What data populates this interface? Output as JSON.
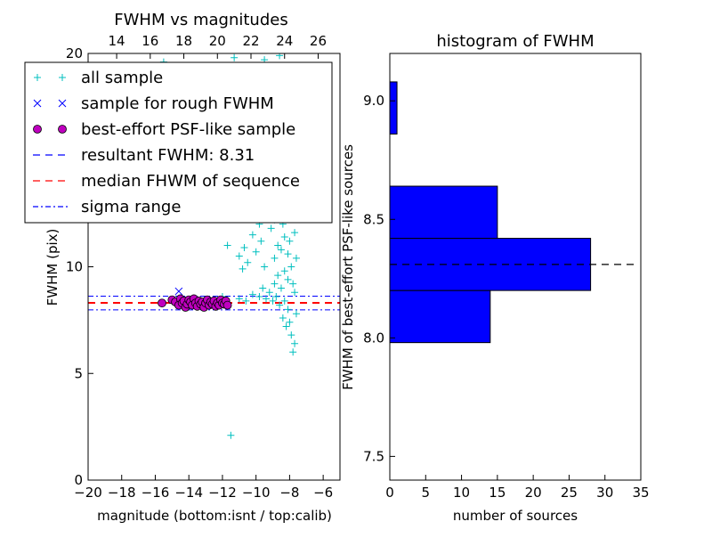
{
  "chart_data": [
    {
      "type": "scatter",
      "title": "FWHM vs magnitudes",
      "xlabel": "magnitude (bottom:isnt / top:calib)",
      "ylabel": "FWHM (pix)",
      "xlim": [
        -20,
        -5
      ],
      "ylim": [
        0,
        20
      ],
      "top_xlim": [
        12.3,
        27.3
      ],
      "x_ticks": [
        -20,
        -18,
        -16,
        -14,
        -12,
        -10,
        -8,
        -6
      ],
      "x_tick_labels": [
        "−20",
        "−18",
        "−16",
        "−14",
        "−12",
        "−10",
        "−8",
        "−6"
      ],
      "y_ticks": [
        0,
        5,
        10,
        20
      ],
      "y_tick_labels": [
        "0",
        "5",
        "10",
        "20"
      ],
      "top_ticks": [
        14,
        16,
        18,
        20,
        22,
        24,
        26
      ],
      "top_tick_labels": [
        "14",
        "16",
        "18",
        "20",
        "22",
        "24",
        "26"
      ],
      "legend_position": "top-left",
      "legend": [
        {
          "label": "all sample",
          "marker": "plus",
          "color": "#00bfbf"
        },
        {
          "label": "sample for rough FWHM",
          "marker": "x",
          "color": "#0000ff"
        },
        {
          "label": "best-effort PSF-like sample",
          "marker": "circle",
          "color": "#bf00bf"
        },
        {
          "label": "resultant FWHM: 8.31",
          "marker": "dashed",
          "color": "#0000ff"
        },
        {
          "label": "median FHWM of sequence",
          "marker": "dashed",
          "color": "#ff0000"
        },
        {
          "label": "sigma range",
          "marker": "dashdot",
          "color": "#0000ff"
        }
      ],
      "hlines": [
        {
          "name": "resultant FWHM",
          "y": 8.31,
          "color": "#0000ff",
          "style": "dashed"
        },
        {
          "name": "median FHWM of sequence",
          "y": 8.31,
          "color": "#ff0000",
          "style": "dashed"
        },
        {
          "name": "sigma upper",
          "y": 8.62,
          "color": "#0000ff",
          "style": "dashdot"
        },
        {
          "name": "sigma lower",
          "y": 7.98,
          "color": "#0000ff",
          "style": "dashdot"
        }
      ],
      "series": [
        {
          "name": "all sample",
          "marker": "plus",
          "color": "#00bfbf",
          "points": [
            [
              -15.5,
              19.6
            ],
            [
              -11.3,
              19.8
            ],
            [
              -9.5,
              19.7
            ],
            [
              -8.6,
              19.9
            ],
            [
              -11.5,
              2.1
            ],
            [
              -11.7,
              11.0
            ],
            [
              -11.0,
              10.5
            ],
            [
              -10.8,
              9.9
            ],
            [
              -10.5,
              10.2
            ],
            [
              -10.7,
              10.9
            ],
            [
              -10.2,
              11.5
            ],
            [
              -10.0,
              10.7
            ],
            [
              -9.8,
              12.0
            ],
            [
              -9.7,
              11.2
            ],
            [
              -9.6,
              13.0
            ],
            [
              -9.5,
              10.0
            ],
            [
              -9.4,
              14.5
            ],
            [
              -9.3,
              12.5
            ],
            [
              -9.2,
              15.8
            ],
            [
              -9.1,
              11.8
            ],
            [
              -9.0,
              16.5
            ],
            [
              -9.0,
              13.8
            ],
            [
              -8.9,
              12.2
            ],
            [
              -8.9,
              10.4
            ],
            [
              -8.8,
              17.2
            ],
            [
              -8.8,
              14.8
            ],
            [
              -8.7,
              13.2
            ],
            [
              -8.7,
              11.0
            ],
            [
              -8.6,
              16.0
            ],
            [
              -8.6,
              12.6
            ],
            [
              -8.5,
              14.0
            ],
            [
              -8.5,
              10.8
            ],
            [
              -8.4,
              17.8
            ],
            [
              -8.4,
              15.2
            ],
            [
              -8.4,
              12.0
            ],
            [
              -8.3,
              13.6
            ],
            [
              -8.3,
              11.4
            ],
            [
              -8.3,
              9.8
            ],
            [
              -8.2,
              16.6
            ],
            [
              -8.2,
              14.4
            ],
            [
              -8.2,
              12.8
            ],
            [
              -8.1,
              10.6
            ],
            [
              -8.1,
              9.4
            ],
            [
              -8.0,
              15.6
            ],
            [
              -8.0,
              13.0
            ],
            [
              -8.0,
              11.2
            ],
            [
              -7.9,
              10.0
            ],
            [
              -7.9,
              12.4
            ],
            [
              -7.8,
              14.2
            ],
            [
              -7.8,
              9.2
            ],
            [
              -7.7,
              11.6
            ],
            [
              -7.7,
              8.8
            ],
            [
              -7.6,
              10.4
            ],
            [
              -7.6,
              7.8
            ],
            [
              -7.7,
              6.4
            ],
            [
              -7.8,
              6.0
            ],
            [
              -7.9,
              6.8
            ],
            [
              -8.0,
              7.4
            ],
            [
              -8.1,
              8.0
            ],
            [
              -8.2,
              7.2
            ],
            [
              -8.3,
              8.4
            ],
            [
              -8.4,
              7.6
            ],
            [
              -8.5,
              9.0
            ],
            [
              -8.6,
              8.2
            ],
            [
              -8.7,
              9.6
            ],
            [
              -8.8,
              8.6
            ],
            [
              -8.9,
              9.2
            ],
            [
              -9.0,
              8.4
            ],
            [
              -9.2,
              8.8
            ],
            [
              -9.4,
              8.5
            ],
            [
              -9.6,
              9.0
            ],
            [
              -9.8,
              8.6
            ],
            [
              -10.2,
              8.7
            ],
            [
              -10.6,
              8.4
            ],
            [
              -11.0,
              8.5
            ],
            [
              -12.0,
              8.6
            ],
            [
              -13.0,
              8.3
            ],
            [
              -14.0,
              8.4
            ]
          ]
        },
        {
          "name": "sample for rough FWHM",
          "marker": "x",
          "color": "#0000ff",
          "points": [
            [
              -14.6,
              8.85
            ]
          ]
        },
        {
          "name": "best-effort PSF-like sample",
          "marker": "circle",
          "color": "#bf00bf",
          "points": [
            [
              -15.6,
              8.3
            ],
            [
              -15.0,
              8.45
            ],
            [
              -14.8,
              8.35
            ],
            [
              -14.6,
              8.2
            ],
            [
              -14.5,
              8.5
            ],
            [
              -14.4,
              8.3
            ],
            [
              -14.3,
              8.4
            ],
            [
              -14.2,
              8.1
            ],
            [
              -14.1,
              8.25
            ],
            [
              -14.0,
              8.45
            ],
            [
              -13.9,
              8.35
            ],
            [
              -13.8,
              8.2
            ],
            [
              -13.7,
              8.5
            ],
            [
              -13.6,
              8.3
            ],
            [
              -13.5,
              8.15
            ],
            [
              -13.4,
              8.4
            ],
            [
              -13.3,
              8.25
            ],
            [
              -13.2,
              8.35
            ],
            [
              -13.1,
              8.1
            ],
            [
              -13.0,
              8.3
            ],
            [
              -12.9,
              8.45
            ],
            [
              -12.8,
              8.2
            ],
            [
              -12.7,
              8.35
            ],
            [
              -12.6,
              8.25
            ],
            [
              -12.5,
              8.4
            ],
            [
              -12.4,
              8.15
            ],
            [
              -12.3,
              8.3
            ],
            [
              -12.2,
              8.2
            ],
            [
              -12.1,
              8.45
            ],
            [
              -12.0,
              8.3
            ],
            [
              -11.9,
              8.25
            ],
            [
              -11.8,
              8.4
            ],
            [
              -11.7,
              8.2
            ]
          ]
        }
      ]
    },
    {
      "type": "bar",
      "orientation": "horizontal",
      "title": "histogram of FWHM",
      "xlabel": "number of sources",
      "ylabel": "FWHM of best-effort PSF-like sources",
      "xlim": [
        0,
        35
      ],
      "ylim": [
        7.4,
        9.2
      ],
      "x_ticks": [
        0,
        5,
        10,
        15,
        20,
        25,
        30,
        35
      ],
      "x_tick_labels": [
        "0",
        "5",
        "10",
        "15",
        "20",
        "25",
        "30",
        "35"
      ],
      "y_ticks": [
        7.5,
        8.0,
        8.5,
        9.0
      ],
      "y_tick_labels": [
        "7.5",
        "8.0",
        "8.5",
        "9.0"
      ],
      "bins": [
        {
          "y0": 7.98,
          "y1": 8.2,
          "count": 14
        },
        {
          "y0": 8.2,
          "y1": 8.42,
          "count": 28
        },
        {
          "y0": 8.42,
          "y1": 8.64,
          "count": 15
        },
        {
          "y0": 8.86,
          "y1": 9.08,
          "count": 1
        }
      ],
      "bar_color": "#0000ff",
      "hline": {
        "y": 8.31,
        "color": "#000000",
        "style": "dashed"
      }
    }
  ]
}
